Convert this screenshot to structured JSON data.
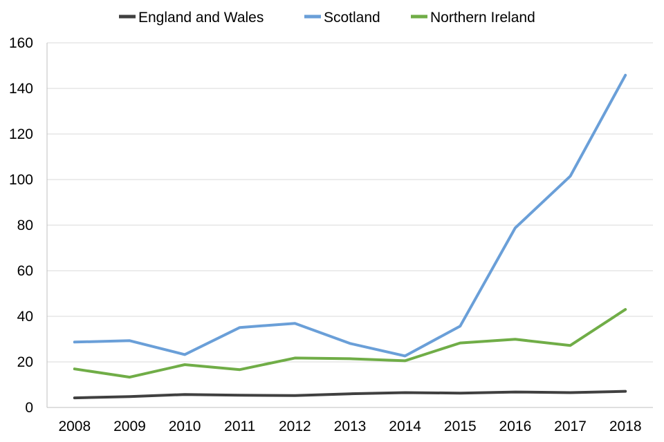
{
  "chart_data": {
    "type": "line",
    "title": "",
    "xlabel": "",
    "ylabel": "",
    "categories": [
      "2008",
      "2009",
      "2010",
      "2011",
      "2012",
      "2013",
      "2014",
      "2015",
      "2016",
      "2017",
      "2018"
    ],
    "ylim": [
      0,
      160
    ],
    "yticks": [
      0,
      20,
      40,
      60,
      80,
      100,
      120,
      140,
      160
    ],
    "grid": true,
    "legend_position": "top",
    "series": [
      {
        "name": "England and Wales",
        "color": "#404040",
        "values": [
          4.2,
          4.8,
          5.7,
          5.4,
          5.2,
          6.0,
          6.5,
          6.3,
          6.8,
          6.5,
          7.1
        ]
      },
      {
        "name": "Scotland",
        "color": "#6a9fd8",
        "values": [
          28.7,
          29.3,
          23.2,
          35.1,
          36.9,
          28.1,
          22.6,
          35.7,
          78.8,
          101.5,
          145.8
        ]
      },
      {
        "name": "Northern Ireland",
        "color": "#70ad47",
        "values": [
          16.9,
          13.3,
          18.8,
          16.6,
          21.7,
          21.4,
          20.5,
          28.3,
          29.9,
          27.2,
          43.0
        ]
      }
    ]
  }
}
